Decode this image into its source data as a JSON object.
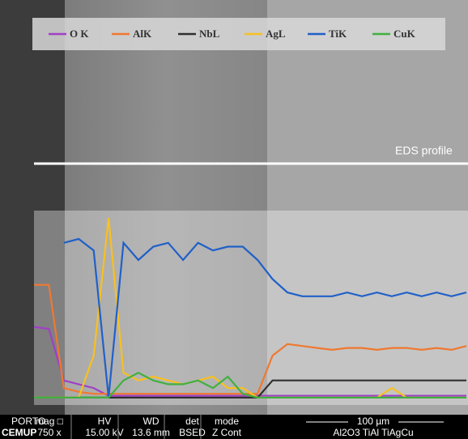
{
  "chart_data": {
    "type": "line",
    "annotation": "EDS profile",
    "ylim": [
      0,
      100
    ],
    "series": [
      {
        "name": "O K",
        "color": "#a040c8",
        "values": [
          40,
          39,
          12,
          10,
          8,
          4,
          4,
          4,
          4,
          4,
          4,
          4,
          4,
          4,
          4,
          4,
          4,
          4,
          4,
          4,
          4,
          4,
          4,
          4,
          4,
          4,
          4,
          4,
          4,
          4
        ]
      },
      {
        "name": "AlK",
        "color": "#f07830",
        "values": [
          62,
          62,
          8,
          6,
          5,
          5,
          5,
          5,
          5,
          5,
          5,
          5,
          5,
          5,
          5,
          5,
          25,
          31,
          30,
          29,
          28,
          29,
          29,
          28,
          29,
          29,
          28,
          29,
          28,
          30
        ]
      },
      {
        "name": "NbL",
        "color": "#303030",
        "values": [
          3,
          3,
          3,
          3,
          3,
          3,
          3,
          3,
          3,
          3,
          3,
          3,
          3,
          3,
          3,
          3,
          12,
          12,
          12,
          12,
          12,
          12,
          12,
          12,
          12,
          12,
          12,
          12,
          12,
          12
        ]
      },
      {
        "name": "AgL",
        "color": "#f8c020",
        "values": [
          3,
          3,
          3,
          3,
          25,
          97,
          16,
          12,
          14,
          12,
          10,
          12,
          14,
          8,
          8,
          3,
          3,
          3,
          3,
          3,
          3,
          3,
          3,
          3,
          8,
          3,
          3,
          3,
          3,
          3
        ]
      },
      {
        "name": "TiK",
        "color": "#2060c8",
        "values": [
          null,
          null,
          84,
          86,
          80,
          3,
          84,
          75,
          82,
          84,
          75,
          84,
          80,
          82,
          82,
          75,
          65,
          58,
          56,
          56,
          56,
          58,
          56,
          58,
          56,
          58,
          56,
          58,
          56,
          58
        ]
      },
      {
        "name": "CuK",
        "color": "#40b040",
        "values": [
          3,
          3,
          3,
          3,
          3,
          3,
          12,
          16,
          12,
          10,
          10,
          12,
          8,
          14,
          5,
          3,
          3,
          3,
          3,
          3,
          3,
          3,
          3,
          3,
          3,
          3,
          3,
          3,
          3,
          3
        ]
      }
    ]
  },
  "info_bar": {
    "logo_top": "PORTO",
    "logo_bottom": "CEMUP",
    "headers": [
      "mag □",
      "HV",
      "WD",
      "det",
      "mode"
    ],
    "values": [
      "750 x",
      "15.00 kV",
      "13.6 mm",
      "BSED",
      "Z Cont"
    ],
    "scale": "100 µm",
    "sample": "Al2O3 TiAl TiAgCu"
  }
}
